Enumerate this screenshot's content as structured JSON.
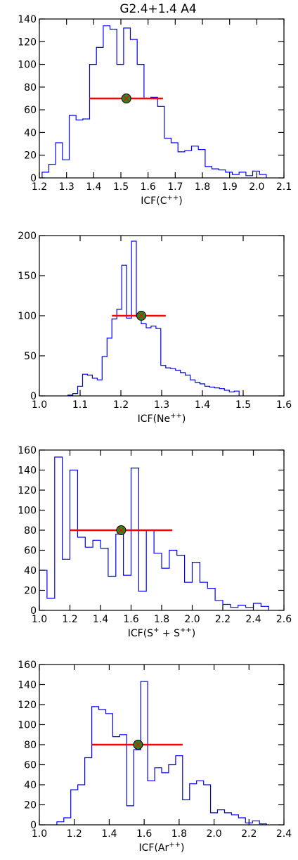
{
  "figure": {
    "title": "G2.4+1.4 A4"
  },
  "colors": {
    "histogram": "#0000ff",
    "error_bar": "#ff0000",
    "marker_fill": "#228b22",
    "axes": "#000000"
  },
  "chart_data": [
    {
      "type": "histogram",
      "xlabel": "ICF(C",
      "xlabel_sup": "++",
      "xlabel_close": ")",
      "xlim": [
        1.2,
        2.1
      ],
      "ylim": [
        0,
        140
      ],
      "xticks": [
        1.2,
        1.3,
        1.4,
        1.5,
        1.6,
        1.7,
        1.8,
        1.9,
        2.0,
        2.1
      ],
      "xtick_labels": [
        "1.2",
        "1.3",
        "1.4",
        "1.5",
        "1.6",
        "1.7",
        "1.8",
        "1.9",
        "2.0",
        "2.1"
      ],
      "yticks": [
        0,
        20,
        40,
        60,
        80,
        100,
        120,
        140
      ],
      "ytick_labels": [
        "0",
        "20",
        "40",
        "60",
        "80",
        "100",
        "120",
        "140"
      ],
      "edges": [
        1.21,
        1.235,
        1.26,
        1.285,
        1.31,
        1.335,
        1.36,
        1.385,
        1.41,
        1.435,
        1.46,
        1.485,
        1.51,
        1.535,
        1.56,
        1.585,
        1.61,
        1.635,
        1.66,
        1.685,
        1.71,
        1.735,
        1.76,
        1.785,
        1.81,
        1.835,
        1.86,
        1.885,
        1.91,
        1.935,
        1.96,
        1.985,
        2.01,
        2.035
      ],
      "counts": [
        5,
        12,
        31,
        16,
        55,
        51,
        52,
        100,
        115,
        134,
        131,
        100,
        132,
        122,
        100,
        70,
        71,
        63,
        35,
        31,
        23,
        24,
        28,
        25,
        10,
        8,
        7,
        5,
        3,
        5,
        2,
        6,
        3
      ],
      "point": {
        "x": 1.52,
        "y": 70
      },
      "error_bar": {
        "low": 1.385,
        "high": 1.655,
        "y": 70
      }
    },
    {
      "type": "histogram",
      "xlabel": "ICF(Ne",
      "xlabel_sup": "++",
      "xlabel_close": ")",
      "xlim": [
        1.0,
        1.6
      ],
      "ylim": [
        0,
        200
      ],
      "xticks": [
        1.0,
        1.1,
        1.2,
        1.3,
        1.4,
        1.5,
        1.6
      ],
      "xtick_labels": [
        "1.0",
        "1.1",
        "1.2",
        "1.3",
        "1.4",
        "1.5",
        "1.6"
      ],
      "yticks": [
        0,
        50,
        100,
        150,
        200
      ],
      "ytick_labels": [
        "0",
        "50",
        "100",
        "150",
        "200"
      ],
      "edges": [
        1.07,
        1.082,
        1.094,
        1.106,
        1.118,
        1.13,
        1.142,
        1.154,
        1.166,
        1.178,
        1.19,
        1.202,
        1.214,
        1.226,
        1.238,
        1.25,
        1.262,
        1.274,
        1.286,
        1.298,
        1.31,
        1.322,
        1.334,
        1.346,
        1.358,
        1.37,
        1.382,
        1.394,
        1.406,
        1.418,
        1.43,
        1.442,
        1.454,
        1.466,
        1.478,
        1.49
      ],
      "counts": [
        1,
        3,
        12,
        27,
        26,
        22,
        20,
        49,
        72,
        96,
        108,
        163,
        97,
        193,
        99,
        90,
        85,
        87,
        84,
        38,
        35,
        34,
        32,
        29,
        26,
        20,
        17,
        15,
        12,
        11,
        10,
        9,
        7,
        5,
        6
      ],
      "point": {
        "x": 1.25,
        "y": 100
      },
      "error_bar": {
        "low": 1.178,
        "high": 1.31,
        "y": 100
      }
    },
    {
      "type": "histogram",
      "xlabel": "ICF(S",
      "xlabel_sup": "+",
      "xlabel_mid": "  + S",
      "xlabel_sup2": "++",
      "xlabel_close": ")",
      "xlim": [
        1.0,
        2.6
      ],
      "ylim": [
        0,
        160
      ],
      "xticks": [
        1.0,
        1.2,
        1.4,
        1.6,
        1.8,
        2.0,
        2.2,
        2.4,
        2.6
      ],
      "xtick_labels": [
        "1.0",
        "1.2",
        "1.4",
        "1.6",
        "1.8",
        "2.0",
        "2.2",
        "2.4",
        "2.6"
      ],
      "yticks": [
        0,
        20,
        40,
        60,
        80,
        100,
        120,
        140,
        160
      ],
      "ytick_labels": [
        "0",
        "20",
        "40",
        "60",
        "80",
        "100",
        "120",
        "140",
        "160"
      ],
      "edges": [
        1.0,
        1.05,
        1.1,
        1.15,
        1.2,
        1.25,
        1.3,
        1.35,
        1.4,
        1.45,
        1.5,
        1.55,
        1.6,
        1.65,
        1.7,
        1.75,
        1.8,
        1.85,
        1.9,
        1.95,
        2.0,
        2.05,
        2.1,
        2.15,
        2.2,
        2.25,
        2.3,
        2.35,
        2.4,
        2.45,
        2.5
      ],
      "counts": [
        40,
        12,
        153,
        51,
        140,
        73,
        63,
        70,
        62,
        34,
        76,
        35,
        142,
        19,
        80,
        57,
        42,
        60,
        55,
        28,
        48,
        28,
        22,
        10,
        6,
        3,
        5,
        3,
        7,
        4
      ],
      "point": {
        "x": 1.535,
        "y": 80
      },
      "error_bar": {
        "low": 1.2,
        "high": 1.87,
        "y": 80
      }
    },
    {
      "type": "histogram",
      "xlabel": "ICF(Ar",
      "xlabel_sup": "++",
      "xlabel_close": ")",
      "xlim": [
        1.0,
        2.4
      ],
      "ylim": [
        0,
        160
      ],
      "xticks": [
        1.0,
        1.2,
        1.4,
        1.6,
        1.8,
        2.0,
        2.2,
        2.4
      ],
      "xtick_labels": [
        "1.0",
        "1.2",
        "1.4",
        "1.6",
        "1.8",
        "2.0",
        "2.2",
        "2.4"
      ],
      "yticks": [
        0,
        20,
        40,
        60,
        80,
        100,
        120,
        140,
        160
      ],
      "ytick_labels": [
        "0",
        "20",
        "40",
        "60",
        "80",
        "100",
        "120",
        "140",
        "160"
      ],
      "edges": [
        1.1,
        1.14,
        1.18,
        1.22,
        1.26,
        1.3,
        1.34,
        1.38,
        1.42,
        1.46,
        1.5,
        1.54,
        1.58,
        1.62,
        1.66,
        1.7,
        1.74,
        1.78,
        1.82,
        1.86,
        1.9,
        1.94,
        1.98,
        2.02,
        2.06,
        2.1,
        2.14,
        2.18,
        2.22,
        2.26,
        2.3
      ],
      "counts": [
        3,
        7,
        35,
        40,
        67,
        118,
        115,
        111,
        88,
        90,
        19,
        75,
        143,
        44,
        57,
        52,
        60,
        69,
        25,
        41,
        44,
        40,
        12,
        15,
        12,
        10,
        7,
        2,
        4,
        1
      ],
      "point": {
        "x": 1.565,
        "y": 80
      },
      "error_bar": {
        "low": 1.3,
        "high": 1.82,
        "y": 80
      }
    }
  ]
}
